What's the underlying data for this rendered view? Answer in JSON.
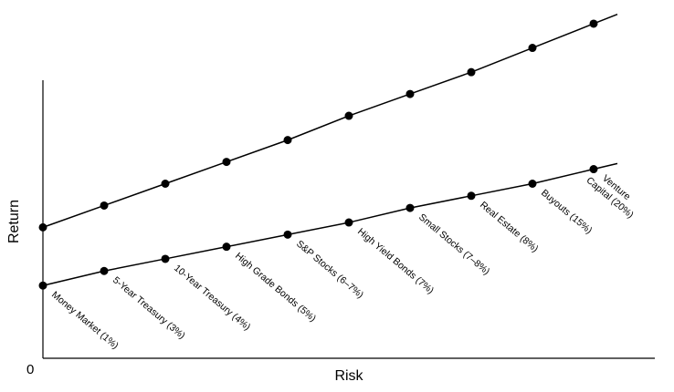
{
  "chart_data": {
    "type": "line",
    "title": "",
    "xlabel": "Risk",
    "ylabel": "Return",
    "origin_label": "0",
    "grid": false,
    "legend": "none",
    "x_tick_labels": false,
    "y_tick_labels": false,
    "xlim": [
      0,
      10
    ],
    "ylim": [
      0,
      14.4
    ],
    "categories": [
      "Money Market (1%)",
      "5-Year Treasury (3%)",
      "10-Year Treasury (4%)",
      "High Grade Bonds (5%)",
      "S&P Stocks (6–7%)",
      "High Yield Bonds (7%)",
      "Small Stocks (7–8%)",
      "Real Estate (8%)",
      "Buyouts (15%)",
      "Venture Capital (20%)"
    ],
    "series": [
      {
        "line_color": "#000000",
        "values": [
          5.4,
          6.3,
          7.2,
          8.1,
          9.0,
          10.0,
          10.9,
          11.8,
          12.8,
          13.8
        ]
      },
      {
        "line_color": "#000000",
        "values": [
          3.0,
          3.6,
          4.1,
          4.6,
          5.1,
          5.6,
          6.2,
          6.7,
          7.2,
          7.8
        ]
      }
    ]
  }
}
